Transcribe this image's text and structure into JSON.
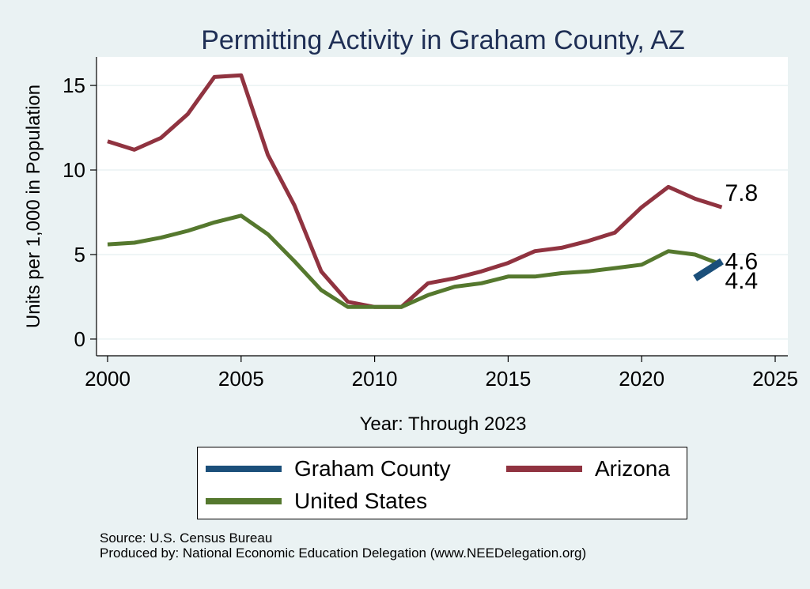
{
  "chart_data": {
    "type": "line",
    "title": "Permitting Activity in Graham County, AZ",
    "xlabel": "Year: Through 2023",
    "ylabel": "Units per 1,000 in Population",
    "xlim": [
      2000,
      2025
    ],
    "ylim": [
      -0.8,
      16.5
    ],
    "x_ticks": [
      2000,
      2005,
      2010,
      2015,
      2020,
      2025
    ],
    "y_ticks": [
      0,
      5,
      10,
      15
    ],
    "grid": "horizontal",
    "legend_position": "bottom",
    "series": [
      {
        "name": "Graham County",
        "color": "#1b4f7a",
        "x": [
          2022,
          2023
        ],
        "y": [
          3.6,
          4.6
        ],
        "end_label": "4.6"
      },
      {
        "name": "Arizona",
        "color": "#903340",
        "x": [
          2000,
          2001,
          2002,
          2003,
          2004,
          2005,
          2006,
          2007,
          2008,
          2009,
          2010,
          2011,
          2012,
          2013,
          2014,
          2015,
          2016,
          2017,
          2018,
          2019,
          2020,
          2021,
          2022,
          2023
        ],
        "y": [
          11.7,
          11.2,
          11.9,
          13.3,
          15.5,
          15.6,
          10.9,
          7.9,
          4.0,
          2.2,
          1.9,
          1.9,
          3.3,
          3.6,
          4.0,
          4.5,
          5.2,
          5.4,
          5.8,
          6.3,
          7.8,
          9.0,
          8.3,
          7.8
        ],
        "end_label": "7.8"
      },
      {
        "name": "United States",
        "color": "#55782e",
        "x": [
          2000,
          2001,
          2002,
          2003,
          2004,
          2005,
          2006,
          2007,
          2008,
          2009,
          2010,
          2011,
          2012,
          2013,
          2014,
          2015,
          2016,
          2017,
          2018,
          2019,
          2020,
          2021,
          2022,
          2023
        ],
        "y": [
          5.6,
          5.7,
          6.0,
          6.4,
          6.9,
          7.3,
          6.2,
          4.6,
          2.9,
          1.9,
          1.9,
          1.9,
          2.6,
          3.1,
          3.3,
          3.7,
          3.7,
          3.9,
          4.0,
          4.2,
          4.4,
          5.2,
          5.0,
          4.4
        ],
        "end_label": "4.4"
      }
    ]
  },
  "legend": {
    "items": [
      {
        "label": "Graham County",
        "color": "#1b4f7a"
      },
      {
        "label": "Arizona",
        "color": "#903340"
      },
      {
        "label": "United States",
        "color": "#55782e"
      }
    ]
  },
  "notes": {
    "source": "Source: U.S. Census Bureau",
    "producer": "Produced by: National Economic Education Delegation (www.NEEDelegation.org)"
  }
}
